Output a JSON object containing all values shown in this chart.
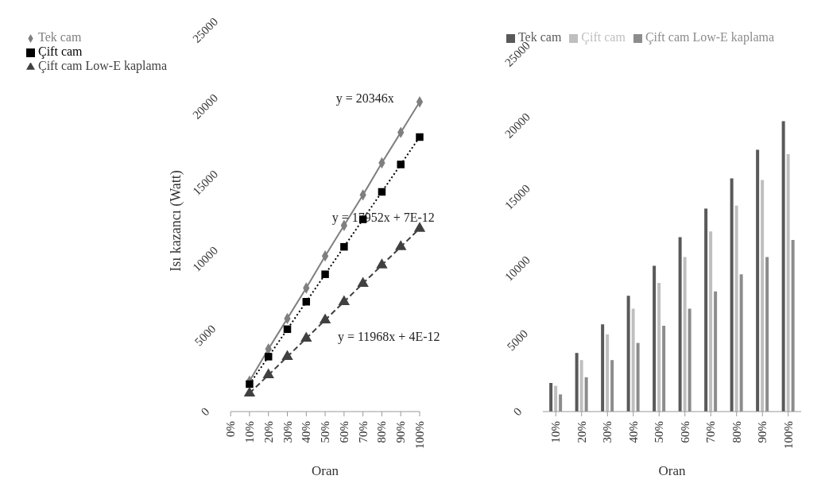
{
  "chart_data": [
    {
      "type": "line",
      "xlabel": "Oran",
      "ylabel": "Isı kazancı (Watt)",
      "categories": [
        "0%",
        "10%",
        "20%",
        "30%",
        "40%",
        "50%",
        "60%",
        "70%",
        "80%",
        "90%",
        "100%"
      ],
      "ylim": [
        0,
        25000
      ],
      "yticks": [
        0,
        5000,
        10000,
        15000,
        20000,
        25000
      ],
      "legend": "top left",
      "series": [
        {
          "name": "Tek cam",
          "color": "#7f7f7f",
          "marker": "diamond",
          "line_style": "solid",
          "values": [
            null,
            2000,
            4100,
            6100,
            8100,
            10200,
            12200,
            14200,
            16300,
            18300,
            20300
          ]
        },
        {
          "name": "Çift cam",
          "color": "#000000",
          "marker": "square",
          "line_style": "dotted",
          "values": [
            null,
            1800,
            3600,
            5400,
            7200,
            9000,
            10800,
            12600,
            14400,
            16200,
            18000
          ]
        },
        {
          "name": "Çift cam Low-E kaplama",
          "color": "#404040",
          "marker": "triangle",
          "line_style": "dashed",
          "values": [
            null,
            1200,
            2400,
            3600,
            4800,
            6000,
            7200,
            8400,
            9600,
            10800,
            12000
          ]
        }
      ],
      "annotations": [
        "y = 20346x",
        "y = 17952x + 7E-12",
        "y = 11968x + 4E-12"
      ]
    },
    {
      "type": "bar",
      "xlabel": "Oran",
      "categories": [
        "10%",
        "20%",
        "30%",
        "40%",
        "50%",
        "60%",
        "70%",
        "80%",
        "90%",
        "100%"
      ],
      "ylim": [
        0,
        25000
      ],
      "yticks": [
        0,
        5000,
        10000,
        15000,
        20000,
        25000
      ],
      "legend": "top",
      "series": [
        {
          "name": "Tek cam",
          "color": "#595959",
          "values": [
            2000,
            4100,
            6100,
            8100,
            10200,
            12200,
            14200,
            16300,
            18300,
            20300
          ]
        },
        {
          "name": "Çift cam",
          "color": "#bfbfbf",
          "values": [
            1800,
            3600,
            5400,
            7200,
            9000,
            10800,
            12600,
            14400,
            16200,
            18000
          ]
        },
        {
          "name": "Çift cam Low-E kaplama",
          "color": "#8c8c8c",
          "values": [
            1200,
            2400,
            3600,
            4800,
            6000,
            7200,
            8400,
            9600,
            10800,
            12000
          ]
        }
      ]
    }
  ]
}
